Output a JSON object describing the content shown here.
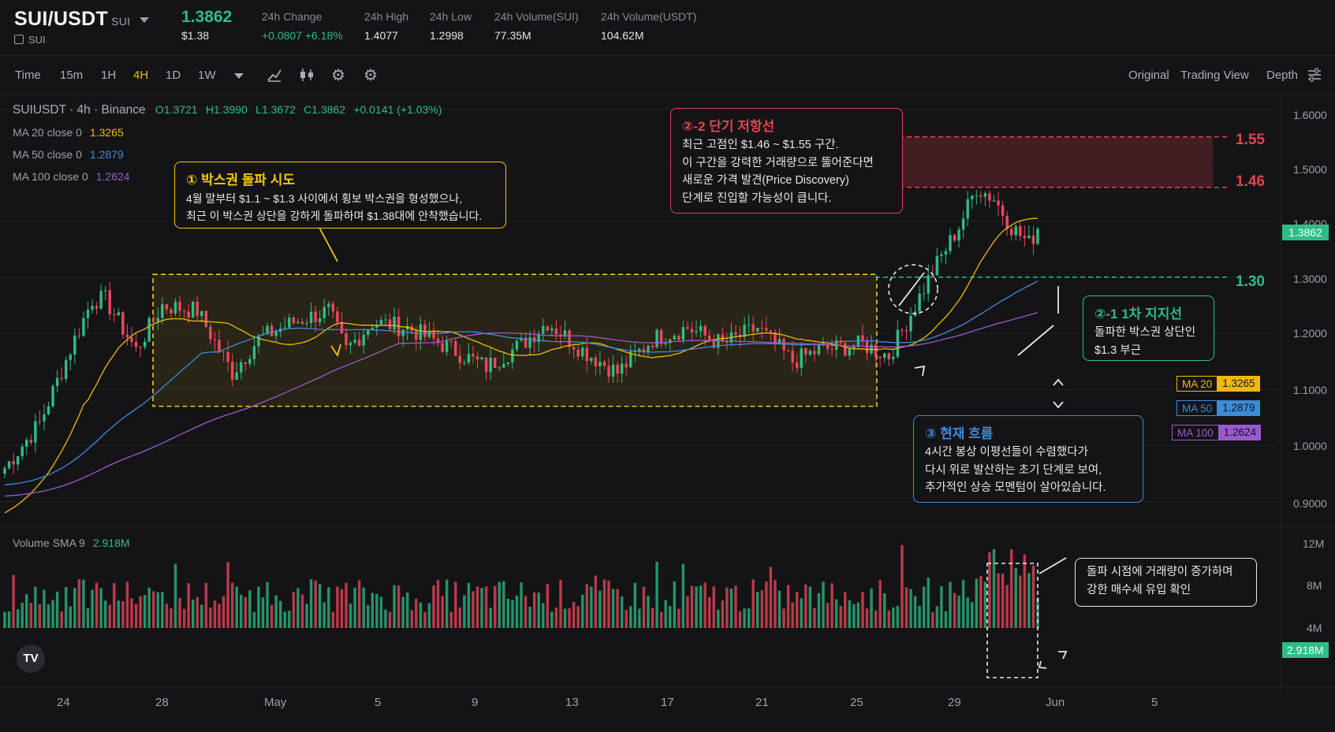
{
  "header": {
    "pair": "SUI/USDT",
    "pair_sub": "SUI",
    "coin": "SUI",
    "price": "1.3862",
    "price_usd": "$1.38",
    "stats": [
      {
        "label": "24h Change",
        "value": "+0.0807 +6.18%"
      },
      {
        "label": "24h High",
        "value": "1.4077"
      },
      {
        "label": "24h Low",
        "value": "1.2998"
      },
      {
        "label": "24h Volume(SUI)",
        "value": "77.35M"
      },
      {
        "label": "24h Volume(USDT)",
        "value": "104.62M"
      }
    ]
  },
  "toolbar": {
    "intervals": [
      "Time",
      "15m",
      "1H",
      "4H",
      "1D",
      "1W"
    ],
    "active_interval": "4H",
    "views": [
      "Original",
      "Trading View",
      "Depth"
    ]
  },
  "legend": {
    "symbol": "SUIUSDT · 4h · Binance",
    "ohlc": {
      "o": "O1.3721",
      "h": "H1.3990",
      "l": "L1.3672",
      "c": "C1.3862",
      "change": "+0.0141 (+1.03%)"
    },
    "ma20": {
      "label": "MA 20 close 0",
      "value": "1.3265"
    },
    "ma50": {
      "label": "MA 50 close 0",
      "value": "1.2879"
    },
    "ma100": {
      "label": "MA 100 close 0",
      "value": "1.2624"
    },
    "volume": {
      "label": "Volume SMA 9",
      "value": "2.918M"
    }
  },
  "annotations": {
    "box": {
      "title": "① 박스권 돌파 시도",
      "lines": [
        "4월 말부터 $1.1 ~ $1.3 사이에서 횡보 박스권을 형성했으나,",
        "최근 이 박스권 상단을 강하게 돌파하며 $1.38대에 안착했습니다."
      ]
    },
    "resistance": {
      "title": "②-2 단기 저항선",
      "lines": [
        "최근 고점인 $1.46 ~ $1.55 구간.",
        "이 구간을 강력한 거래량으로 뚫어준다면",
        "새로운 가격 발견(Price Discovery)",
        "단계로 진입할 가능성이 큽니다."
      ]
    },
    "support": {
      "title": "②-1 1차 지지선",
      "lines": [
        "돌파한 박스권 상단인",
        "$1.3 부근"
      ]
    },
    "flow": {
      "title": "③ 현재 흐름",
      "lines": [
        "4시간 봉상 이평선들이 수렴했다가",
        "다시 위로 발산하는 초기 단계로 보여,",
        "추가적인 상승 모멘텀이 살아있습니다."
      ]
    },
    "volume": {
      "lines": [
        "돌파 시점에 거래량이 증가하며",
        "강한 매수세 유입 확인"
      ]
    },
    "levels": {
      "l155": "1.55",
      "l146": "1.46",
      "l130": "1.30"
    }
  },
  "price_axis": {
    "labels": [
      "1.6000",
      "1.5000",
      "1.4000",
      "1.3000",
      "1.2000",
      "1.1000",
      "1.0000",
      "0.9000"
    ],
    "current": "1.3862",
    "ma_tags": [
      {
        "name": "MA 20",
        "value": "1.3265",
        "color": "#f0b90b"
      },
      {
        "name": "MA 50",
        "value": "1.2879",
        "color": "#3d8bd9"
      },
      {
        "name": "MA 100",
        "value": "1.2624",
        "color": "#9b59d0"
      }
    ]
  },
  "volume_axis": {
    "labels": [
      "12M",
      "8M",
      "4M"
    ],
    "current": "2.918M"
  },
  "date_axis": [
    "24",
    "28",
    "May",
    "5",
    "9",
    "13",
    "17",
    "21",
    "25",
    "29",
    "Jun",
    "5"
  ],
  "colors": {
    "up": "#2ebd85",
    "down": "#f0485b",
    "ma20": "#f0b90b",
    "ma50": "#3d8bd9",
    "ma100": "#9b59d0",
    "box": "#f5c518",
    "resistance": "#e8414f",
    "support": "#2ebd85",
    "flow": "#3d8bd9"
  },
  "chart_data": {
    "type": "candlestick",
    "interval": "4h",
    "ylim": [
      0.9,
      1.6
    ],
    "volume_ylim_m": [
      0,
      12
    ],
    "key_values": {
      "box_range": [
        1.1,
        1.3
      ],
      "support": 1.3,
      "resistance_zone": [
        1.46,
        1.55
      ],
      "last_close": 1.3862,
      "recent_high": 1.47
    },
    "series": [
      {
        "name": "MA 20",
        "last": 1.3265
      },
      {
        "name": "MA 50",
        "last": 1.2879
      },
      {
        "name": "MA 100",
        "last": 1.2624
      }
    ],
    "price_path": [
      [
        0,
        0.96
      ],
      [
        8,
        1.04
      ],
      [
        16,
        1.19
      ],
      [
        20,
        1.26
      ],
      [
        23,
        1.26
      ],
      [
        30,
        1.17
      ],
      [
        36,
        1.25
      ],
      [
        44,
        1.24
      ],
      [
        52,
        1.13
      ],
      [
        58,
        1.19
      ],
      [
        66,
        1.22
      ],
      [
        74,
        1.24
      ],
      [
        78,
        1.17
      ],
      [
        84,
        1.22
      ],
      [
        92,
        1.21
      ],
      [
        100,
        1.18
      ],
      [
        110,
        1.14
      ],
      [
        118,
        1.18
      ],
      [
        124,
        1.22
      ],
      [
        132,
        1.17
      ],
      [
        140,
        1.13
      ],
      [
        148,
        1.19
      ],
      [
        156,
        1.21
      ],
      [
        164,
        1.18
      ],
      [
        172,
        1.21
      ],
      [
        180,
        1.15
      ],
      [
        186,
        1.17
      ],
      [
        196,
        1.18
      ],
      [
        202,
        1.16
      ],
      [
        206,
        1.22
      ],
      [
        212,
        1.31
      ],
      [
        218,
        1.39
      ],
      [
        222,
        1.46
      ],
      [
        226,
        1.44
      ],
      [
        230,
        1.39
      ],
      [
        234,
        1.36
      ],
      [
        236,
        1.386
      ]
    ],
    "volume_spike_index": [
      222,
      236
    ]
  }
}
